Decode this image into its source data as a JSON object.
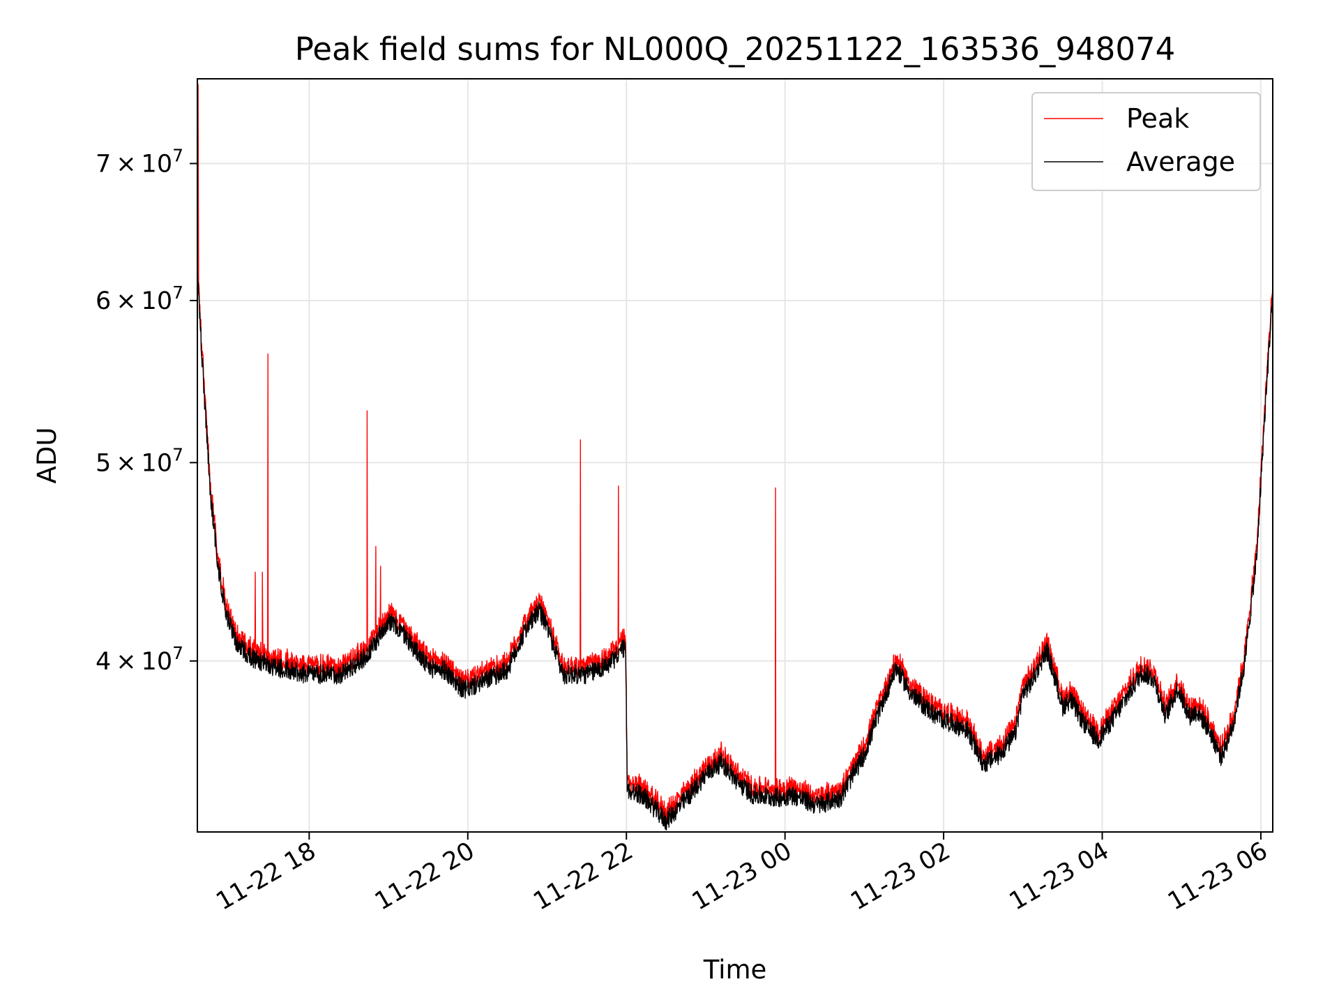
{
  "chart_data": {
    "type": "line",
    "title": "Peak field sums for NL000Q_20251122_163536_948074",
    "xlabel": "Time",
    "ylabel": "ADU",
    "y_scale": "log",
    "ylim": [
      33000000,
      77000000
    ],
    "xlim_hours": [
      16.59,
      30.15
    ],
    "grid": true,
    "legend_position": "top-right",
    "x_ticks": [
      {
        "hour": 18,
        "label": "11-22 18"
      },
      {
        "hour": 20,
        "label": "11-22 20"
      },
      {
        "hour": 22,
        "label": "11-22 22"
      },
      {
        "hour": 24,
        "label": "11-23 00"
      },
      {
        "hour": 26,
        "label": "11-23 02"
      },
      {
        "hour": 28,
        "label": "11-23 04"
      },
      {
        "hour": 30,
        "label": "11-23 06"
      }
    ],
    "y_ticks": [
      {
        "value": 40000000,
        "mantissa": "4",
        "exponent": "7"
      },
      {
        "value": 50000000,
        "mantissa": "5",
        "exponent": "7"
      },
      {
        "value": 60000000,
        "mantissa": "6",
        "exponent": "7"
      },
      {
        "value": 70000000,
        "mantissa": "7",
        "exponent": "7"
      }
    ],
    "series": [
      {
        "name": "Peak",
        "color": "#ff0000"
      },
      {
        "name": "Average",
        "color": "#000000"
      }
    ],
    "average_profile": {
      "hours": [
        16.59,
        16.65,
        16.75,
        16.85,
        16.95,
        17.1,
        17.3,
        17.6,
        18.0,
        18.4,
        18.6,
        18.75,
        19.0,
        19.2,
        19.5,
        19.7,
        19.95,
        20.2,
        20.5,
        20.75,
        20.9,
        21.0,
        21.2,
        21.5,
        21.8,
        21.99,
        22.01,
        22.2,
        22.5,
        22.8,
        23.0,
        23.2,
        23.4,
        23.6,
        23.9,
        24.1,
        24.4,
        24.7,
        25.0,
        25.2,
        25.4,
        25.6,
        25.9,
        26.1,
        26.3,
        26.5,
        26.7,
        26.9,
        27.0,
        27.1,
        27.3,
        27.5,
        27.6,
        27.8,
        27.95,
        28.2,
        28.5,
        28.65,
        28.8,
        28.95,
        29.1,
        29.2,
        29.35,
        29.5,
        29.65,
        29.8,
        29.95,
        30.15
      ],
      "values": [
        62000000,
        56000000,
        48500000,
        44500000,
        42200000,
        40700000,
        40100000,
        39700000,
        39400000,
        39400000,
        39900000,
        40300000,
        41900000,
        41200000,
        39700000,
        39600000,
        38700000,
        39100000,
        39600000,
        41600000,
        42300000,
        41600000,
        39400000,
        39400000,
        39900000,
        40700000,
        34600000,
        34400000,
        33400000,
        34400000,
        35200000,
        35700000,
        34900000,
        34400000,
        34300000,
        34400000,
        34000000,
        34300000,
        36000000,
        37900000,
        39700000,
        38500000,
        37600000,
        37300000,
        37000000,
        35600000,
        36000000,
        36800000,
        38600000,
        39000000,
        40500000,
        38000000,
        38300000,
        37100000,
        36600000,
        37800000,
        39500000,
        39200000,
        37600000,
        38800000,
        37600000,
        37800000,
        37000000,
        35900000,
        37200000,
        40000000,
        45000000,
        60500000
      ]
    },
    "peak_offset_fraction": 0.01,
    "peak_spikes": [
      {
        "hour": 16.6,
        "value": 76500000
      },
      {
        "hour": 17.32,
        "value": 44200000
      },
      {
        "hour": 17.41,
        "value": 44200000
      },
      {
        "hour": 17.48,
        "value": 56500000
      },
      {
        "hour": 18.73,
        "value": 53000000
      },
      {
        "hour": 18.84,
        "value": 45500000
      },
      {
        "hour": 18.9,
        "value": 44500000
      },
      {
        "hour": 21.42,
        "value": 51300000
      },
      {
        "hour": 21.9,
        "value": 48700000
      },
      {
        "hour": 23.88,
        "value": 48600000
      }
    ]
  }
}
